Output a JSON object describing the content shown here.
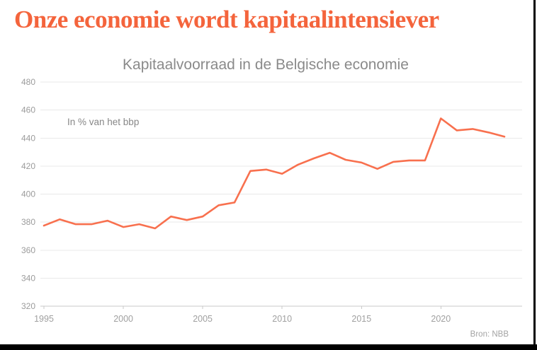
{
  "header": {
    "title": "Onze economie wordt kapitaalintensiever"
  },
  "colors": {
    "title_accent": "#f4643c",
    "line": "#f8704e",
    "grid": "#e9e9e9",
    "axis": "#c9c9c9",
    "muted_text": "#8a8a8a"
  },
  "chart_data": {
    "type": "line",
    "title": "Kapitaalvoorraad in de Belgische economie",
    "annotation": "In % van het bbp",
    "source": "Bron: NBB",
    "xlabel": "",
    "ylabel": "",
    "grid": true,
    "legend": false,
    "ylim": [
      320,
      480
    ],
    "ytick_step": 20,
    "xticks": [
      1995,
      2000,
      2005,
      2010,
      2015,
      2020
    ],
    "x": [
      1995,
      1996,
      1997,
      1998,
      1999,
      2000,
      2001,
      2002,
      2003,
      2004,
      2005,
      2006,
      2007,
      2008,
      2009,
      2010,
      2011,
      2012,
      2013,
      2014,
      2015,
      2016,
      2017,
      2018,
      2019,
      2020,
      2021,
      2022,
      2023,
      2024
    ],
    "series": [
      {
        "name": "Kapitaalvoorraad",
        "values": [
          377.5,
          382,
          378.5,
          378.5,
          381,
          376.5,
          378.5,
          375.5,
          384,
          381.5,
          384,
          392,
          394,
          416.5,
          417.5,
          414.5,
          421,
          425.5,
          429.5,
          424.5,
          422.5,
          418,
          423,
          424,
          424,
          454,
          445.5,
          446.5,
          444,
          441
        ]
      }
    ]
  }
}
